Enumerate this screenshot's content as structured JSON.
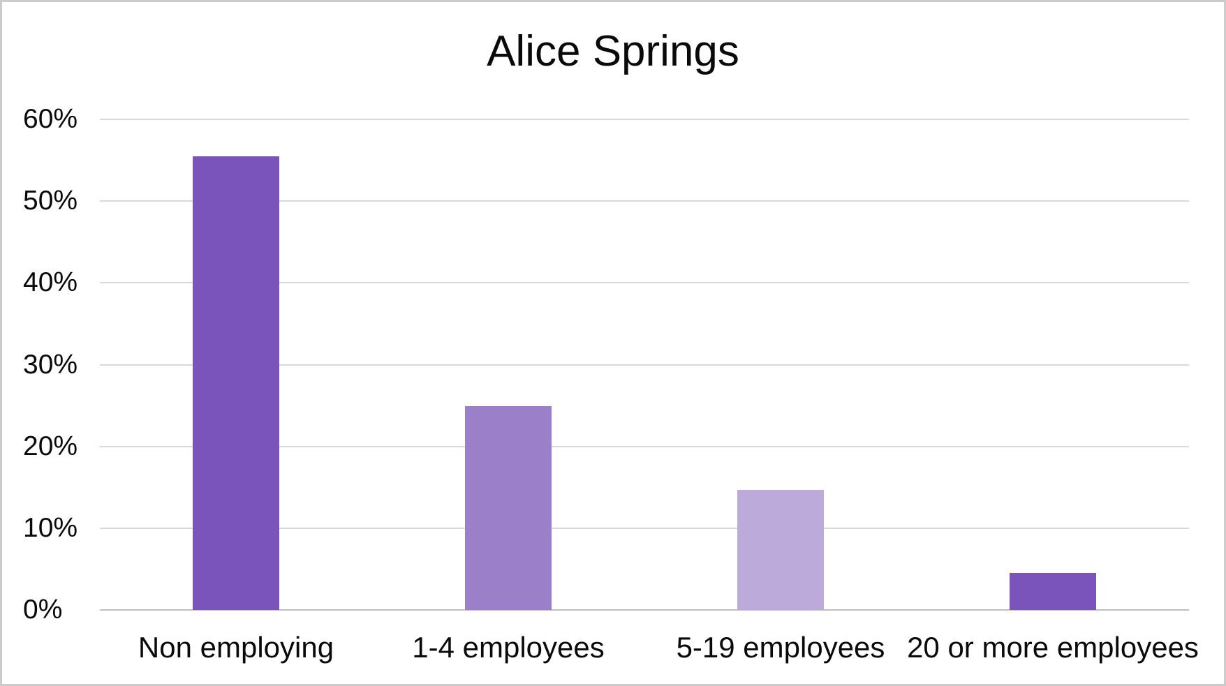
{
  "chart_data": {
    "type": "bar",
    "title": "Alice Springs",
    "categories": [
      "Non employing",
      "1-4 employees",
      "5-19 employees",
      "20 or more employees"
    ],
    "values": [
      55.5,
      24.9,
      14.7,
      4.5
    ],
    "unit": "%",
    "bar_colors": [
      "#7A54BA",
      "#9B80C9",
      "#BCAADB",
      "#7A54BA"
    ],
    "ylim": [
      0,
      60
    ],
    "ytick_step": 10,
    "ytick_labels": [
      "0%",
      "10%",
      "20%",
      "30%",
      "40%",
      "50%",
      "60%"
    ],
    "xlabel": "",
    "ylabel": "",
    "legend": "none",
    "grid": "horizontal",
    "grid_color": "#D9D9D9",
    "axis_line_color": "#BFBFBF",
    "plot_background": "#FFFFFF",
    "frame_border_color": "#CBCBCB",
    "text_color": "#0A0A0A"
  }
}
